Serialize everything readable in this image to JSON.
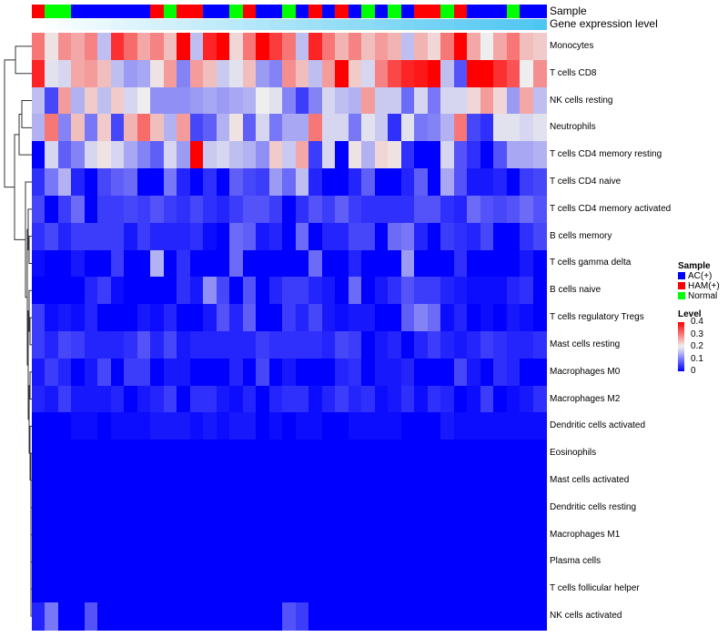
{
  "chart_data": {
    "type": "heatmap",
    "annotation_labels": {
      "sample": "Sample",
      "gene": "Gene expression level"
    },
    "rows": [
      "Monocytes",
      "T cells CD8",
      "NK cells resting",
      "Neutrophils",
      "T cells CD4 memory resting",
      "T cells CD4 naive",
      "T cells CD4 memory activated",
      "B cells memory",
      "T cells gamma delta",
      "B cells naive",
      "T cells regulatory  Tregs",
      "Mast cells resting",
      "Macrophages M0",
      "Macrophages M2",
      "Dendritic cells activated",
      "Eosinophils",
      "Mast cells activated",
      "Dendritic cells resting",
      "Macrophages M1",
      "Plasma cells",
      "T cells follicular helper",
      "NK cells activated"
    ],
    "samples": [
      "HAM(+)",
      "Normal",
      "Normal",
      "AC(+)",
      "AC(+)",
      "AC(+)",
      "AC(+)",
      "AC(+)",
      "AC(+)",
      "HAM(+)",
      "Normal",
      "HAM(+)",
      "HAM(+)",
      "AC(+)",
      "AC(+)",
      "Normal",
      "HAM(+)",
      "AC(+)",
      "AC(+)",
      "Normal",
      "AC(+)",
      "HAM(+)",
      "AC(+)",
      "HAM(+)",
      "AC(+)",
      "Normal",
      "AC(+)",
      "Normal",
      "AC(+)",
      "HAM(+)",
      "HAM(+)",
      "Normal",
      "HAM(+)",
      "AC(+)",
      "AC(+)",
      "AC(+)",
      "Normal",
      "AC(+)",
      "AC(+)"
    ],
    "gene_expression_level_range": [
      0,
      1
    ],
    "values": [
      [
        0.3,
        0.21,
        0.28,
        0.26,
        0.29,
        0.16,
        0.36,
        0.31,
        0.26,
        0.29,
        0.24,
        0.4,
        0.16,
        0.37,
        0.4,
        0.22,
        0.3,
        0.4,
        0.35,
        0.3,
        0.16,
        0.37,
        0.3,
        0.25,
        0.29,
        0.24,
        0.27,
        0.25,
        0.16,
        0.25,
        0.22,
        0.3,
        0.4,
        0.26,
        0.2,
        0.26,
        0.3,
        0.24,
        0.23
      ],
      [
        0.37,
        0.19,
        0.18,
        0.26,
        0.27,
        0.24,
        0.16,
        0.13,
        0.14,
        0.21,
        0.27,
        0.11,
        0.27,
        0.24,
        0.17,
        0.19,
        0.24,
        0.13,
        0.11,
        0.28,
        0.24,
        0.16,
        0.27,
        0.4,
        0.23,
        0.18,
        0.29,
        0.34,
        0.37,
        0.38,
        0.4,
        0.16,
        0.07,
        0.4,
        0.4,
        0.36,
        0.33,
        0.2,
        0.28
      ],
      [
        0.16,
        0.06,
        0.27,
        0.15,
        0.23,
        0.16,
        0.23,
        0.18,
        0.2,
        0.12,
        0.12,
        0.12,
        0.13,
        0.14,
        0.13,
        0.14,
        0.15,
        0.2,
        0.19,
        0.11,
        0.05,
        0.11,
        0.18,
        0.16,
        0.15,
        0.27,
        0.17,
        0.17,
        0.09,
        0.18,
        0.1,
        0.18,
        0.18,
        0.22,
        0.27,
        0.22,
        0.13,
        0.26,
        0.16
      ],
      [
        0.15,
        0.3,
        0.11,
        0.24,
        0.1,
        0.23,
        0.06,
        0.25,
        0.31,
        0.24,
        0.15,
        0.27,
        0.06,
        0.08,
        0.15,
        0.21,
        0.08,
        0.18,
        0.1,
        0.14,
        0.14,
        0.3,
        0.18,
        0.18,
        0.1,
        0.19,
        0.17,
        0.04,
        0.19,
        0.1,
        0.11,
        0.15,
        0.3,
        0.06,
        0.04,
        0.19,
        0.19,
        0.18,
        0.19
      ],
      [
        0,
        0.18,
        0.08,
        0.11,
        0.18,
        0.21,
        0.18,
        0.14,
        0.11,
        0.08,
        0.18,
        0.13,
        0.4,
        0.17,
        0.18,
        0.16,
        0.15,
        0.12,
        0.23,
        0.17,
        0.26,
        0.05,
        0.18,
        0,
        0.21,
        0.15,
        0.22,
        0.21,
        0.04,
        0,
        0,
        0.18,
        0.07,
        0.04,
        0,
        0.07,
        0.14,
        0.14,
        0.15
      ],
      [
        0.04,
        0.1,
        0.15,
        0.03,
        0,
        0.06,
        0.08,
        0.09,
        0,
        0,
        0.1,
        0.03,
        0,
        0.04,
        0,
        0.08,
        0.06,
        0.05,
        0.13,
        0.09,
        0.16,
        0.03,
        0,
        0,
        0.03,
        0.08,
        0,
        0,
        0.03,
        0.08,
        0,
        0.14,
        0.07,
        0.02,
        0.02,
        0.03,
        0,
        0.05,
        0.06
      ],
      [
        0.06,
        0,
        0.05,
        0.09,
        0,
        0.05,
        0.05,
        0.06,
        0.05,
        0.07,
        0.05,
        0.04,
        0.06,
        0.04,
        0.03,
        0.05,
        0.07,
        0.07,
        0.05,
        0,
        0.04,
        0.07,
        0.05,
        0.08,
        0.05,
        0.04,
        0.04,
        0.04,
        0.04,
        0.07,
        0.07,
        0.04,
        0.03,
        0.09,
        0.07,
        0.06,
        0.07,
        0.09,
        0.07
      ],
      [
        0.04,
        0.06,
        0.03,
        0.05,
        0.05,
        0.05,
        0.05,
        0.02,
        0.05,
        0.03,
        0.03,
        0.03,
        0.04,
        0.01,
        0,
        0.09,
        0.08,
        0.02,
        0.03,
        0,
        0.09,
        0,
        0.03,
        0.03,
        0.06,
        0.06,
        0,
        0.09,
        0.1,
        0.03,
        0,
        0.05,
        0.04,
        0.03,
        0.06,
        0,
        0,
        0.04,
        0.06
      ],
      [
        0.01,
        0,
        0,
        0.02,
        0,
        0,
        0.05,
        0,
        0,
        0.15,
        0,
        0.04,
        0,
        0,
        0,
        0.09,
        0,
        0,
        0,
        0,
        0,
        0.09,
        0,
        0,
        0.03,
        0,
        0,
        0,
        0.13,
        0,
        0,
        0,
        0.04,
        0,
        0,
        0,
        0,
        0.02,
        0
      ],
      [
        0,
        0,
        0,
        0,
        0.03,
        0.05,
        0.01,
        0,
        0,
        0,
        0,
        0.04,
        0.02,
        0.12,
        0.06,
        0,
        0.07,
        0,
        0.03,
        0.05,
        0.05,
        0.03,
        0.02,
        0,
        0.09,
        0,
        0.02,
        0.04,
        0.07,
        0.05,
        0.05,
        0.03,
        0.02,
        0.01,
        0.01,
        0.01,
        0.03,
        0.04,
        0
      ],
      [
        0.05,
        0.01,
        0.02,
        0.01,
        0.03,
        0,
        0,
        0,
        0.02,
        0.01,
        0.03,
        0,
        0,
        0.02,
        0.07,
        0.03,
        0.08,
        0,
        0,
        0.05,
        0.03,
        0.06,
        0.02,
        0.01,
        0.02,
        0.02,
        0,
        0,
        0.08,
        0.11,
        0.09,
        0.01,
        0.03,
        0,
        0.01,
        0,
        0.02,
        0.01,
        0
      ],
      [
        0.05,
        0.03,
        0.06,
        0.05,
        0.03,
        0.03,
        0.03,
        0.04,
        0.07,
        0.03,
        0.06,
        0.02,
        0.03,
        0.03,
        0.03,
        0.03,
        0.03,
        0.05,
        0.04,
        0.04,
        0.04,
        0.04,
        0.03,
        0.06,
        0.05,
        0,
        0.02,
        0.03,
        0,
        0.03,
        0.05,
        0.03,
        0.02,
        0.03,
        0.05,
        0.04,
        0.03,
        0.03,
        0.04
      ],
      [
        0.02,
        0.05,
        0.03,
        0,
        0.02,
        0.06,
        0,
        0.05,
        0.05,
        0,
        0.02,
        0.02,
        0,
        0,
        0,
        0.03,
        0,
        0.06,
        0,
        0.02,
        0,
        0,
        0,
        0.03,
        0.04,
        0,
        0.02,
        0.02,
        0.03,
        0,
        0,
        0,
        0.06,
        0.02,
        0,
        0.04,
        0.03,
        0,
        0
      ],
      [
        0.03,
        0.02,
        0.05,
        0.02,
        0.02,
        0.02,
        0.03,
        0,
        0.02,
        0.03,
        0.05,
        0,
        0.04,
        0.04,
        0.02,
        0.01,
        0.03,
        0,
        0.03,
        0.04,
        0.04,
        0.01,
        0.03,
        0.05,
        0.03,
        0.04,
        0.01,
        0.02,
        0.04,
        0.01,
        0.04,
        0.03,
        0,
        0.01,
        0.05,
        0,
        0.01,
        0.02,
        0.04
      ],
      [
        0,
        0,
        0,
        0.01,
        0.01,
        0,
        0.01,
        0.01,
        0.01,
        0.02,
        0.02,
        0.02,
        0.01,
        0.02,
        0.01,
        0.02,
        0.02,
        0,
        0.01,
        0,
        0.01,
        0.01,
        0,
        0,
        0.01,
        0.01,
        0.01,
        0.01,
        0,
        0,
        0,
        0.02,
        0.01,
        0.01,
        0.01,
        0.01,
        0.01,
        0.01,
        0.01
      ],
      [
        0,
        0,
        0,
        0,
        0,
        0,
        0,
        0,
        0,
        0,
        0,
        0,
        0,
        0,
        0,
        0,
        0,
        0,
        0,
        0,
        0,
        0,
        0,
        0,
        0,
        0,
        0,
        0,
        0,
        0,
        0,
        0,
        0,
        0,
        0,
        0,
        0,
        0,
        0
      ],
      [
        0,
        0,
        0,
        0,
        0,
        0,
        0,
        0,
        0,
        0,
        0,
        0,
        0,
        0,
        0,
        0,
        0,
        0,
        0,
        0,
        0,
        0,
        0,
        0,
        0,
        0,
        0,
        0,
        0,
        0,
        0,
        0,
        0,
        0,
        0,
        0,
        0,
        0,
        0
      ],
      [
        0,
        0,
        0,
        0,
        0,
        0,
        0,
        0,
        0,
        0,
        0,
        0,
        0,
        0,
        0,
        0,
        0,
        0,
        0,
        0,
        0,
        0,
        0,
        0,
        0,
        0,
        0,
        0,
        0,
        0,
        0,
        0,
        0,
        0,
        0,
        0,
        0,
        0,
        0
      ],
      [
        0,
        0,
        0,
        0,
        0,
        0,
        0,
        0,
        0,
        0,
        0,
        0,
        0,
        0,
        0,
        0,
        0,
        0,
        0,
        0,
        0,
        0,
        0,
        0,
        0,
        0,
        0,
        0,
        0,
        0,
        0,
        0,
        0,
        0,
        0,
        0,
        0,
        0,
        0
      ],
      [
        0,
        0,
        0,
        0,
        0,
        0,
        0,
        0,
        0,
        0,
        0,
        0,
        0,
        0,
        0,
        0,
        0,
        0,
        0,
        0,
        0,
        0,
        0,
        0,
        0,
        0,
        0,
        0,
        0,
        0,
        0,
        0,
        0,
        0,
        0,
        0,
        0,
        0,
        0
      ],
      [
        0,
        0,
        0,
        0,
        0,
        0,
        0,
        0,
        0,
        0,
        0,
        0,
        0,
        0,
        0,
        0,
        0,
        0,
        0,
        0,
        0,
        0,
        0,
        0,
        0,
        0,
        0,
        0,
        0,
        0,
        0,
        0,
        0,
        0,
        0,
        0,
        0,
        0,
        0
      ],
      [
        0.03,
        0.1,
        0,
        0,
        0.07,
        0,
        0,
        0,
        0,
        0,
        0,
        0,
        0,
        0,
        0,
        0,
        0,
        0,
        0,
        0.07,
        0.05,
        0,
        0,
        0,
        0,
        0,
        0,
        0,
        0,
        0,
        0,
        0,
        0,
        0,
        0,
        0,
        0,
        0,
        0
      ]
    ],
    "legend": {
      "sample_title": "Sample",
      "sample_entries": [
        {
          "label": "AC(+)",
          "color": "#0000ff"
        },
        {
          "label": "HAM(+)",
          "color": "#ff0000"
        },
        {
          "label": "Normal",
          "color": "#00ff00"
        }
      ],
      "level_title": "Level",
      "level_ticks": [
        "0.4",
        "0.3",
        "0.2",
        "0.1",
        "0"
      ],
      "placement": "right"
    },
    "color_scale": {
      "min": 0,
      "mid": 0.2,
      "max": 0.4,
      "low": "#0000ff",
      "midcolor": "#eeeeee",
      "high": "#ff0000"
    },
    "gene_bar_colors": {
      "low": "#ffffff",
      "high": "#4ec6f2"
    }
  }
}
